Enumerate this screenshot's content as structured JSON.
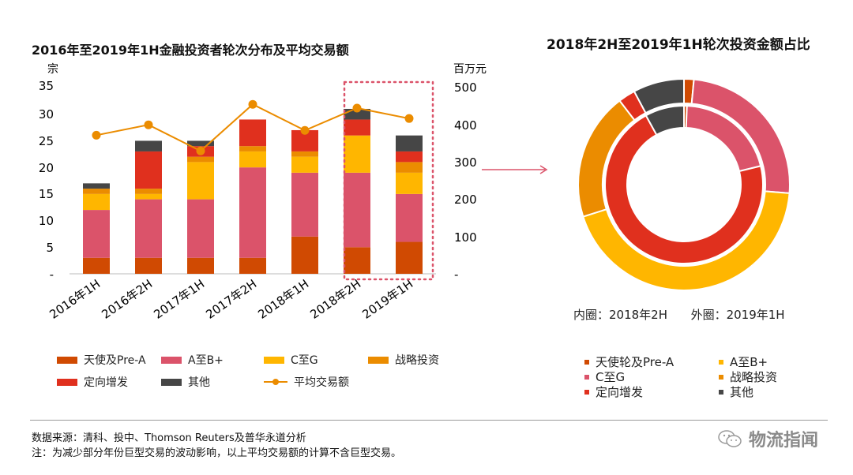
{
  "left_chart": {
    "title": "2016年至2019年1H金融投资者轮次分布及平均交易额",
    "left_unit": "宗",
    "right_unit": "百万元",
    "left_ticks": [
      "35",
      "30",
      "25",
      "20",
      "15",
      "10",
      "5",
      "-"
    ],
    "right_ticks": [
      "500",
      "400",
      "300",
      "200",
      "100",
      "-"
    ]
  },
  "right_chart": {
    "title": "2018年2H至2019年1H轮次投资金额占比",
    "caption_inner": "内圈：2018年2H",
    "caption_outer": "外圈：2019年1H"
  },
  "legend": {
    "s1": "天使及Pre-A",
    "s2": "A至B+",
    "s3": "C至G",
    "s4": "战略投资",
    "s5": "定向增发",
    "s6": "其他",
    "line": "平均交易额"
  },
  "donut_legend": {
    "s1": "天使轮及Pre-A",
    "s2": "A至B+",
    "s3": "C至G",
    "s4": "战略投资",
    "s5": "定向增发",
    "s6": "其他"
  },
  "footer": {
    "source": "数据来源：清科、投中、Thomson Reuters及普华永道分析",
    "note": "注：为减少部分年份巨型交易的波动影响，以上平均交易额的计算不含巨型交易。"
  },
  "watermark": "物流指闻",
  "colors": {
    "angel": "#d04a02",
    "ab": "#db536a",
    "cg": "#ffb600",
    "strategic": "#eb8c00",
    "private_placement": "#e0301e",
    "other": "#464646",
    "line": "#eb8c00",
    "highlight": "#db536a"
  },
  "chart_data": [
    {
      "type": "bar",
      "stacked": true,
      "categories": [
        "2016年1H",
        "2016年2H",
        "2017年1H",
        "2017年2H",
        "2018年1H",
        "2018年2H",
        "2019年1H"
      ],
      "series": [
        {
          "name": "天使及Pre-A",
          "values": [
            3,
            3,
            3,
            3,
            7,
            5,
            6
          ]
        },
        {
          "name": "A至B+",
          "values": [
            9,
            11,
            11,
            17,
            12,
            14,
            9
          ]
        },
        {
          "name": "C至G",
          "values": [
            3,
            1,
            7,
            3,
            3,
            7,
            4
          ]
        },
        {
          "name": "战略投资",
          "values": [
            1,
            1,
            1,
            1,
            1,
            0,
            2
          ]
        },
        {
          "name": "定向增发",
          "values": [
            0,
            7,
            2,
            5,
            4,
            3,
            2
          ]
        },
        {
          "name": "其他",
          "values": [
            1,
            2,
            1,
            0,
            0,
            2,
            3
          ]
        }
      ],
      "line": {
        "name": "平均交易额",
        "axis": "right",
        "values": [
          372,
          400,
          330,
          455,
          385,
          445,
          417
        ]
      },
      "ylim": [
        0,
        35
      ],
      "y2lim": [
        0,
        500
      ],
      "ylabel": "宗",
      "y2label": "百万元",
      "highlight_category": "2018年2H"
    },
    {
      "type": "pie",
      "donut": true,
      "ring": "inner",
      "caption": "内圈：2018年2H",
      "labels": [
        "天使轮及Pre-A",
        "A至B+",
        "C至G",
        "战略投资",
        "定向增发",
        "其他"
      ],
      "values": [
        0.6,
        20.6,
        0,
        0,
        70.8,
        8.0
      ]
    },
    {
      "type": "pie",
      "donut": true,
      "ring": "outer",
      "caption": "外圈：2019年1H",
      "labels": [
        "天使轮及Pre-A",
        "A至B+",
        "C至G",
        "战略投资",
        "定向增发",
        "其他"
      ],
      "values": [
        1.5,
        24.8,
        43.8,
        19.5,
        2.6,
        7.8
      ]
    }
  ]
}
